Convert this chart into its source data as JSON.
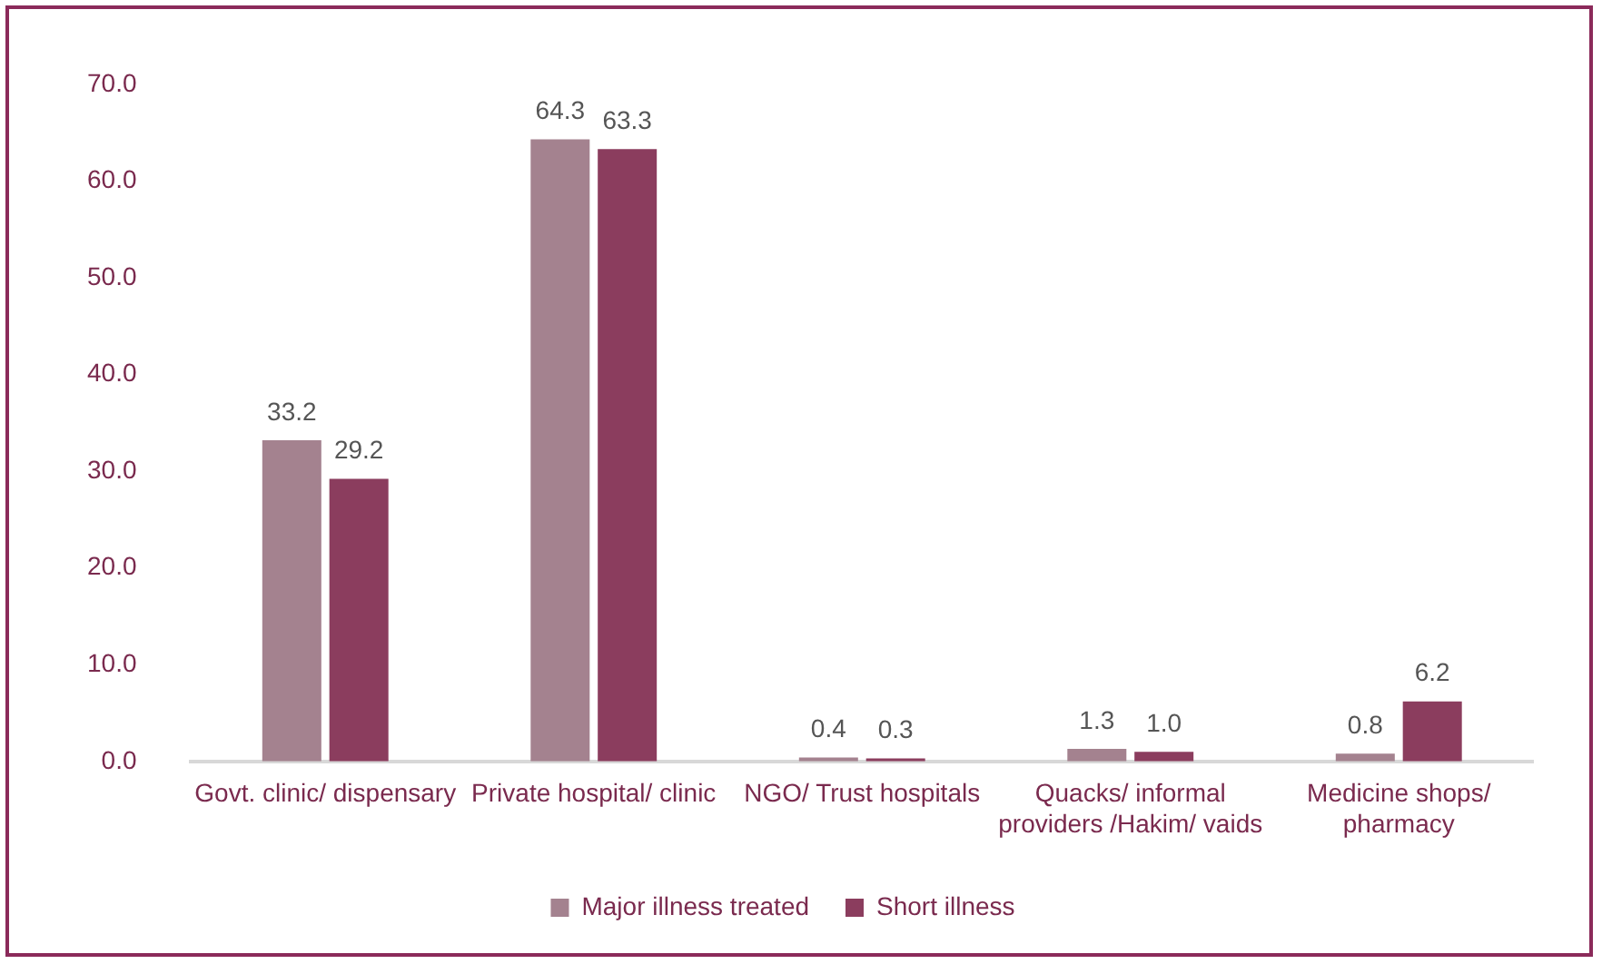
{
  "chart_data": {
    "type": "bar",
    "categories": [
      "Govt. clinic/ dispensary",
      "Private hospital/ clinic",
      "NGO/ Trust hospitals",
      "Quacks/ informal providers /Hakim/ vaids",
      "Medicine shops/ pharmacy"
    ],
    "series": [
      {
        "name": "Major illness treated",
        "color": "#a4828f",
        "values": [
          33.2,
          64.3,
          0.4,
          1.3,
          0.8
        ],
        "value_labels": [
          "33.2",
          "64.3",
          "0.4",
          "1.3",
          "0.8"
        ]
      },
      {
        "name": "Short illness",
        "color": "#8b3d5e",
        "values": [
          29.2,
          63.3,
          0.3,
          1.0,
          6.2
        ],
        "value_labels": [
          "29.2",
          "63.3",
          "0.3",
          "1.0",
          "6.2"
        ]
      }
    ],
    "ylim": [
      0,
      70
    ],
    "yticks": [
      {
        "value": 0,
        "label": "0.0"
      },
      {
        "value": 10,
        "label": "10.0"
      },
      {
        "value": 20,
        "label": "20.0"
      },
      {
        "value": 30,
        "label": "30.0"
      },
      {
        "value": 40,
        "label": "40.0"
      },
      {
        "value": 50,
        "label": "50.0"
      },
      {
        "value": 60,
        "label": "60.0"
      },
      {
        "value": 70,
        "label": "70.0"
      }
    ],
    "grid": false,
    "legend": "bottom"
  }
}
